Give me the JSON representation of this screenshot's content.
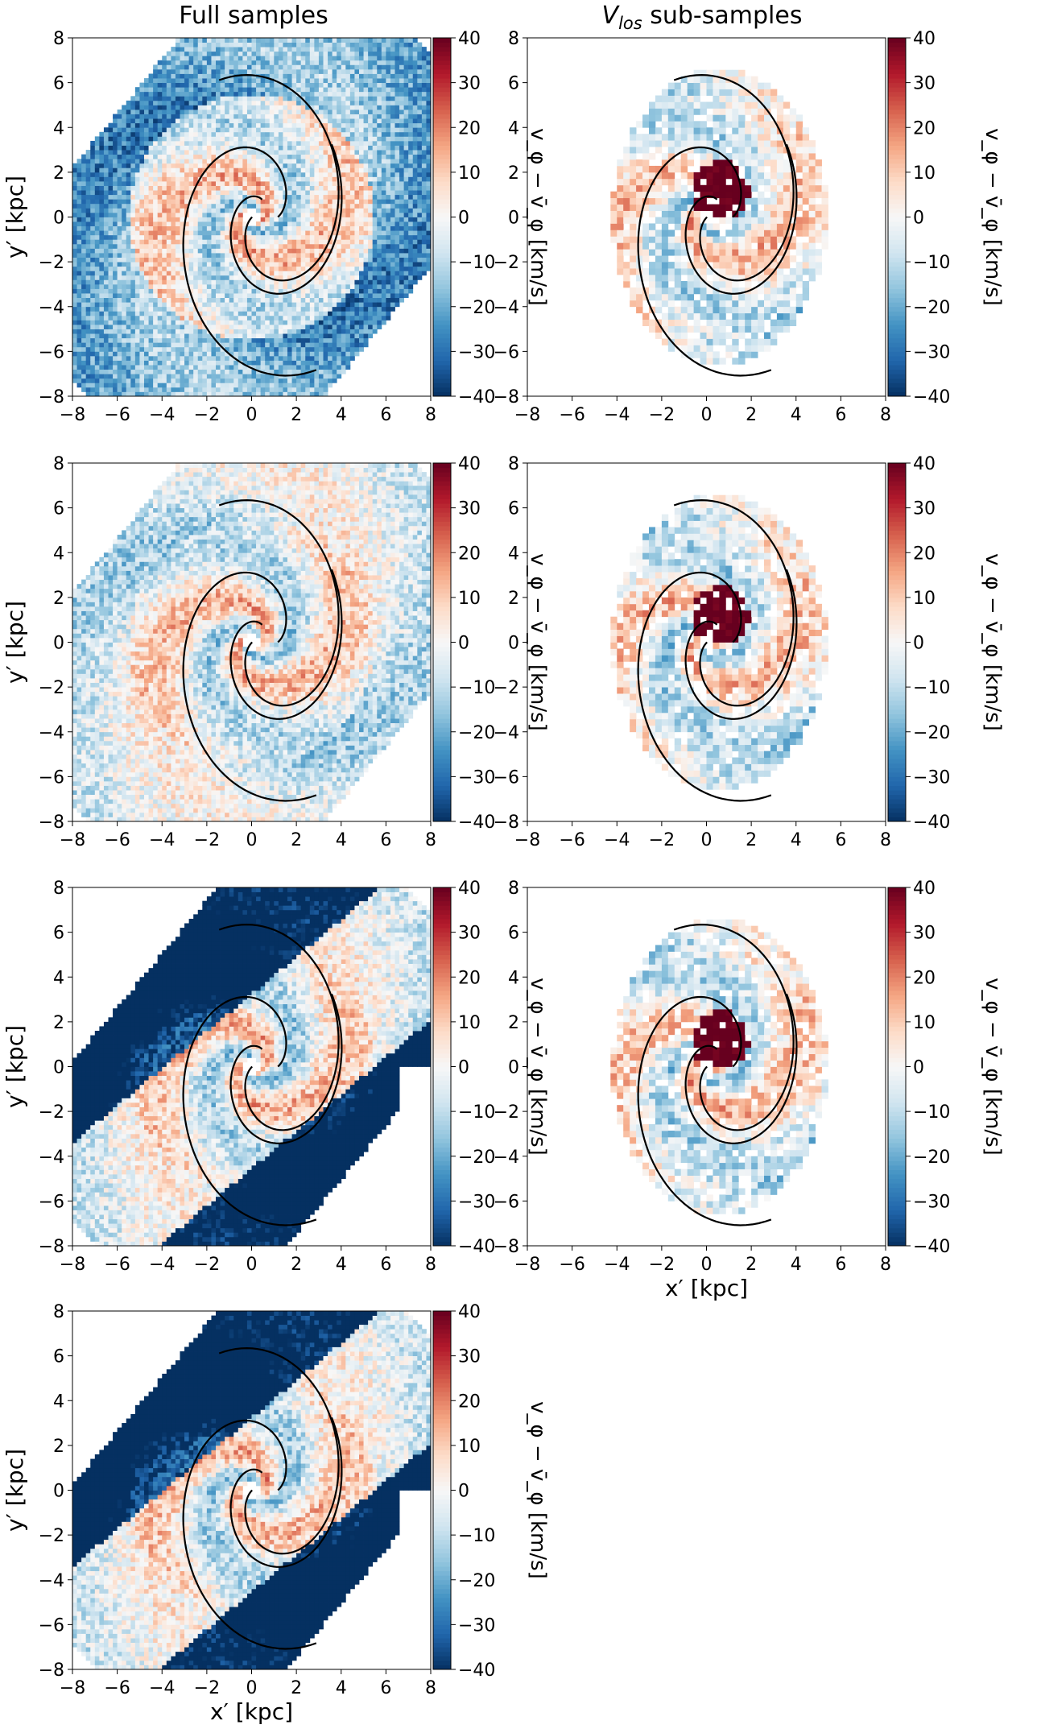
{
  "figure": {
    "col_titles": [
      "Full samples",
      "V",
      "los",
      " sub-samples"
    ],
    "colors": {
      "neg": "#053061",
      "mid": "#f7f7f7",
      "pos": "#67001f",
      "contour": "#000000"
    },
    "colorbar_label": "v_φ − v̄_φ [km/s]"
  },
  "chart_data": [
    {
      "type": "heatmap",
      "panel": "full-1",
      "xlabel": "",
      "ylabel": "y′ [kpc]",
      "xlim": [
        -8,
        8
      ],
      "ylim": [
        -8,
        8
      ],
      "xticks": [
        -8,
        -6,
        -4,
        -2,
        0,
        2,
        4,
        6,
        8
      ],
      "yticks": [
        -8,
        -6,
        -4,
        -2,
        0,
        2,
        4,
        6,
        8
      ],
      "colorbar": {
        "range": [
          -40,
          40
        ],
        "ticks": [
          -40,
          -30,
          -20,
          -10,
          0,
          10,
          20,
          30,
          40
        ],
        "cmap": "RdBu_r"
      }
    },
    {
      "type": "heatmap",
      "panel": "vlos-1",
      "xlabel": "",
      "ylabel": "",
      "xlim": [
        -8,
        8
      ],
      "ylim": [
        -8,
        8
      ],
      "xticks": [
        -8,
        -6,
        -4,
        -2,
        0,
        2,
        4,
        6,
        8
      ],
      "yticks": [
        -8,
        -6,
        -4,
        -2,
        0,
        2,
        4,
        6,
        8
      ],
      "colorbar": {
        "range": [
          -40,
          40
        ],
        "ticks": [
          -40,
          -30,
          -20,
          -10,
          0,
          10,
          20,
          30,
          40
        ],
        "cmap": "RdBu_r"
      }
    },
    {
      "type": "heatmap",
      "panel": "full-2",
      "xlabel": "",
      "ylabel": "y′ [kpc]",
      "xlim": [
        -8,
        8
      ],
      "ylim": [
        -8,
        8
      ],
      "xticks": [
        -8,
        -6,
        -4,
        -2,
        0,
        2,
        4,
        6,
        8
      ],
      "yticks": [
        -8,
        -6,
        -4,
        -2,
        0,
        2,
        4,
        6,
        8
      ],
      "colorbar": {
        "range": [
          -40,
          40
        ],
        "ticks": [
          -40,
          -30,
          -20,
          -10,
          0,
          10,
          20,
          30,
          40
        ],
        "cmap": "RdBu_r"
      }
    },
    {
      "type": "heatmap",
      "panel": "vlos-2",
      "xlabel": "",
      "ylabel": "",
      "xlim": [
        -8,
        8
      ],
      "ylim": [
        -8,
        8
      ],
      "xticks": [
        -8,
        -6,
        -4,
        -2,
        0,
        2,
        4,
        6,
        8
      ],
      "yticks": [
        -8,
        -6,
        -4,
        -2,
        0,
        2,
        4,
        6,
        8
      ],
      "colorbar": {
        "range": [
          -40,
          40
        ],
        "ticks": [
          -40,
          -30,
          -20,
          -10,
          0,
          10,
          20,
          30,
          40
        ],
        "cmap": "RdBu_r"
      }
    },
    {
      "type": "heatmap",
      "panel": "full-3",
      "xlabel": "",
      "ylabel": "y′ [kpc]",
      "xlim": [
        -8,
        8
      ],
      "ylim": [
        -8,
        8
      ],
      "xticks": [
        -8,
        -6,
        -4,
        -2,
        0,
        2,
        4,
        6,
        8
      ],
      "yticks": [
        -8,
        -6,
        -4,
        -2,
        0,
        2,
        4,
        6,
        8
      ],
      "colorbar": {
        "range": [
          -40,
          40
        ],
        "ticks": [
          -40,
          -30,
          -20,
          -10,
          0,
          10,
          20,
          30,
          40
        ],
        "cmap": "RdBu_r"
      }
    },
    {
      "type": "heatmap",
      "panel": "vlos-3",
      "xlabel": "x′ [kpc]",
      "ylabel": "",
      "xlim": [
        -8,
        8
      ],
      "ylim": [
        -8,
        8
      ],
      "xticks": [
        -8,
        -6,
        -4,
        -2,
        0,
        2,
        4,
        6,
        8
      ],
      "yticks": [
        -8,
        -6,
        -4,
        -2,
        0,
        2,
        4,
        6,
        8
      ],
      "colorbar": {
        "range": [
          -40,
          40
        ],
        "ticks": [
          -40,
          -30,
          -20,
          -10,
          0,
          10,
          20,
          30,
          40
        ],
        "cmap": "RdBu_r"
      }
    },
    {
      "type": "heatmap",
      "panel": "full-4",
      "xlabel": "x′ [kpc]",
      "ylabel": "y′ [kpc]",
      "xlim": [
        -8,
        8
      ],
      "ylim": [
        -8,
        8
      ],
      "xticks": [
        -8,
        -6,
        -4,
        -2,
        0,
        2,
        4,
        6,
        8
      ],
      "yticks": [
        -8,
        -6,
        -4,
        -2,
        0,
        2,
        4,
        6,
        8
      ],
      "colorbar": {
        "range": [
          -40,
          40
        ],
        "ticks": [
          -40,
          -30,
          -20,
          -10,
          0,
          10,
          20,
          30,
          40
        ],
        "cmap": "RdBu_r"
      }
    }
  ]
}
